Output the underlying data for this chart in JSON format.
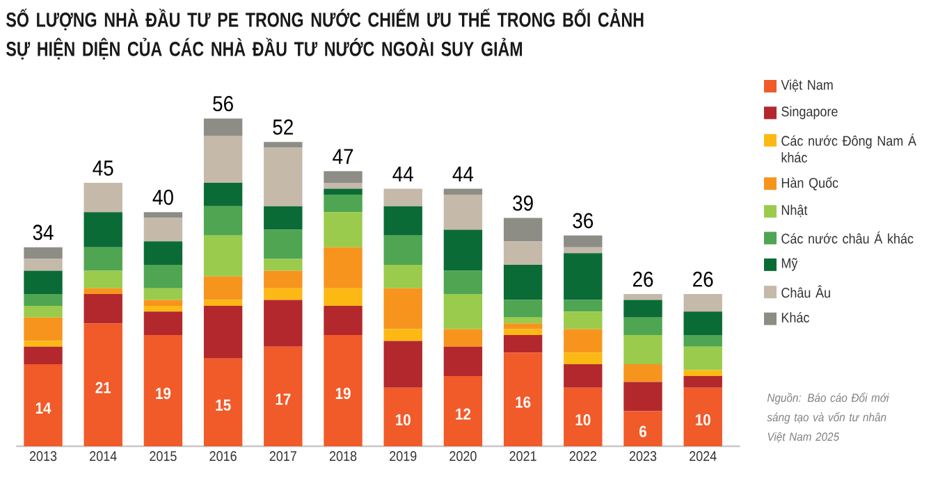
{
  "chart_data": {
    "type": "bar",
    "stacked": true,
    "legend": "right",
    "title": "SỐ LƯỢNG NHÀ ĐẦU TƯ PE TRONG NƯỚC CHIẾM ƯU THẾ TRONG BỐI CẢNH SỰ HIỆN DIỆN CỦA CÁC NHÀ ĐẦU TƯ NƯỚC NGOÀI SUY GIẢM",
    "categories": [
      "2013",
      "2014",
      "2015",
      "2016",
      "2017",
      "2018",
      "2019",
      "2020",
      "2021",
      "2022",
      "2023",
      "2024"
    ],
    "series": [
      {
        "name": "Việt Nam",
        "color": "#f15a29",
        "values": [
          14,
          21,
          19,
          15,
          17,
          19,
          10,
          12,
          16,
          10,
          6,
          10
        ],
        "value_labels": [
          "14",
          "21",
          "19",
          "15",
          "17",
          "19",
          "10",
          "12",
          "16",
          "10",
          "6",
          "10"
        ]
      },
      {
        "name": "Singapore",
        "color": "#b3282d",
        "values": [
          3,
          5,
          4,
          9,
          8,
          5,
          8,
          5,
          3,
          4,
          5,
          2
        ]
      },
      {
        "name": "Các nước Đông Nam Á khác",
        "color": "#fdb913",
        "values": [
          1,
          0,
          1,
          1,
          2,
          3,
          2,
          0,
          1,
          2,
          0,
          1
        ]
      },
      {
        "name": "Hàn Quốc",
        "color": "#f7941d",
        "values": [
          4,
          1,
          1,
          4,
          3,
          7,
          7,
          3,
          1,
          4,
          3,
          0
        ]
      },
      {
        "name": "Nhật",
        "color": "#9acb4c",
        "values": [
          2,
          3,
          2,
          7,
          2,
          6,
          4,
          6,
          1,
          3,
          5,
          4
        ]
      },
      {
        "name": "Các nước châu Á khác",
        "color": "#4fa552",
        "values": [
          2,
          4,
          4,
          5,
          5,
          3,
          5,
          4,
          3,
          2,
          3,
          2
        ]
      },
      {
        "name": "Mỹ",
        "color": "#0b6b36",
        "values": [
          4,
          6,
          4,
          4,
          4,
          1,
          5,
          7,
          6,
          8,
          3,
          4
        ]
      },
      {
        "name": "Châu Âu",
        "color": "#c5b9aa",
        "values": [
          2,
          5,
          4,
          8,
          10,
          1,
          3,
          6,
          4,
          1,
          1,
          3
        ]
      },
      {
        "name": "Khác",
        "color": "#8d8d86",
        "values": [
          2,
          0,
          1,
          3,
          1,
          2,
          0,
          1,
          4,
          2,
          0,
          0
        ]
      }
    ],
    "totals": [
      "34",
      "45",
      "40",
      "56",
      "52",
      "47",
      "44",
      "44",
      "39",
      "36",
      "26",
      "26"
    ],
    "annotations": [
      "Nguồn: Báo cáo Đổi mới sáng tạo và vốn tư nhân Việt Nam 2025"
    ]
  }
}
